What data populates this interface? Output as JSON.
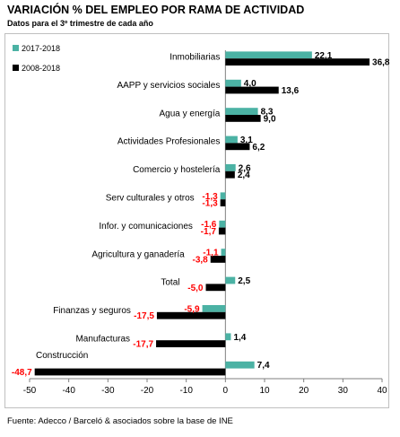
{
  "title": "VARIACIÓN % DEL EMPLEO POR RAMA DE ACTIVIDAD",
  "subtitle": "Datos para el 3º trimestre de cada año",
  "source": "Fuente: Adecco / Barceló & asociados sobre la base de INE",
  "colors": {
    "series_2017": "#4bb2a4",
    "series_2008": "#000000",
    "negative_label": "#ff0000"
  },
  "chart_data": {
    "type": "bar",
    "orientation": "horizontal",
    "categories": [
      "Inmobiliarias",
      "AAPP y servicios sociales",
      "Agua y energía",
      "Actividades Profesionales",
      "Comercio y hostelería",
      "Serv culturales y otros",
      "Infor. y comunicaciones",
      "Agricultura y ganadería",
      "Total",
      "Finanzas y seguros",
      "Manufacturas",
      "Construcción"
    ],
    "series": [
      {
        "name": "2017-2018",
        "values": [
          22.1,
          4.0,
          8.3,
          3.1,
          2.6,
          -1.3,
          -1.6,
          -1.1,
          2.5,
          -5.9,
          1.4,
          7.4
        ],
        "labels": [
          "22,1",
          "4,0",
          "8,3",
          "3,1",
          "2,6",
          "-1,3",
          "-1,6",
          "-1,1",
          "2,5",
          "-5,9",
          "1,4",
          "7,4"
        ]
      },
      {
        "name": "2008-2018",
        "values": [
          36.8,
          13.6,
          9.0,
          6.2,
          2.4,
          -1.3,
          -1.7,
          -3.8,
          -5.0,
          -17.5,
          -17.7,
          -48.7
        ],
        "labels": [
          "36,8",
          "13,6",
          "9,0",
          "6,2",
          "2,4",
          "-1,3",
          "-1,7",
          "-3,8",
          "-5,0",
          "-17,5",
          "-17,7",
          "-48,7"
        ]
      }
    ],
    "xlim": [
      -50,
      40
    ],
    "xticks": [
      -50,
      -40,
      -30,
      -20,
      -10,
      0,
      10,
      20,
      30,
      40
    ],
    "xlabel": "",
    "ylabel": "",
    "grid": false,
    "legend_position": "top-left"
  }
}
